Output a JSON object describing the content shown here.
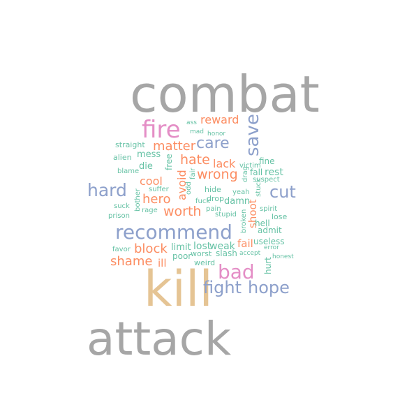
{
  "word_cloud": {
    "colors": {
      "gray": "#a6a6a6",
      "pink": "#e48ec6",
      "blue": "#8da0cb",
      "orange": "#fc8d62",
      "green": "#66c2a5",
      "gold": "#e5c494"
    },
    "words": [
      {
        "text": "combat",
        "color": "gray"
      },
      {
        "text": "kill",
        "color": "gold"
      },
      {
        "text": "attack",
        "color": "gray"
      },
      {
        "text": "fire",
        "color": "pink"
      },
      {
        "text": "save",
        "color": "blue"
      },
      {
        "text": "recommend",
        "color": "blue"
      },
      {
        "text": "bad",
        "color": "pink"
      },
      {
        "text": "hope",
        "color": "blue"
      },
      {
        "text": "fight",
        "color": "blue"
      },
      {
        "text": "hard",
        "color": "blue"
      },
      {
        "text": "cut",
        "color": "blue"
      },
      {
        "text": "care",
        "color": "blue"
      },
      {
        "text": "matter",
        "color": "orange"
      },
      {
        "text": "worth",
        "color": "orange"
      },
      {
        "text": "wrong",
        "color": "orange"
      },
      {
        "text": "hate",
        "color": "orange"
      },
      {
        "text": "hero",
        "color": "orange"
      },
      {
        "text": "block",
        "color": "orange"
      },
      {
        "text": "shame",
        "color": "orange"
      },
      {
        "text": "reward",
        "color": "orange"
      },
      {
        "text": "cool",
        "color": "orange"
      },
      {
        "text": "lack",
        "color": "orange"
      },
      {
        "text": "avoid",
        "color": "orange"
      },
      {
        "text": "shoot",
        "color": "orange"
      },
      {
        "text": "fail",
        "color": "orange"
      },
      {
        "text": "ill",
        "color": "orange"
      },
      {
        "text": "rest",
        "color": "green"
      },
      {
        "text": "fall",
        "color": "green"
      },
      {
        "text": "fine",
        "color": "green"
      },
      {
        "text": "hell",
        "color": "green"
      },
      {
        "text": "weak",
        "color": "green"
      },
      {
        "text": "lost",
        "color": "green"
      },
      {
        "text": "limit",
        "color": "green"
      },
      {
        "text": "useless",
        "color": "green"
      },
      {
        "text": "damn",
        "color": "green"
      },
      {
        "text": "hurt",
        "color": "green"
      },
      {
        "text": "die",
        "color": "green"
      },
      {
        "text": "mess",
        "color": "green"
      },
      {
        "text": "free",
        "color": "green"
      },
      {
        "text": "poor",
        "color": "green"
      },
      {
        "text": "admit",
        "color": "green"
      },
      {
        "text": "slash",
        "color": "green"
      },
      {
        "text": "worst",
        "color": "green"
      },
      {
        "text": "weird",
        "color": "green"
      },
      {
        "text": "lose",
        "color": "green"
      },
      {
        "text": "straight",
        "color": "green"
      },
      {
        "text": "alien",
        "color": "green"
      },
      {
        "text": "suffer",
        "color": "green"
      },
      {
        "text": "hide",
        "color": "green"
      },
      {
        "text": "drop",
        "color": "green"
      },
      {
        "text": "pain",
        "color": "green"
      },
      {
        "text": "victim",
        "color": "green"
      },
      {
        "text": "drag",
        "color": "green"
      },
      {
        "text": "broken",
        "color": "green"
      },
      {
        "text": "spirit",
        "color": "green"
      },
      {
        "text": "stuck",
        "color": "green"
      },
      {
        "text": "suspect",
        "color": "green"
      },
      {
        "text": "yeah",
        "color": "green"
      },
      {
        "text": "fair",
        "color": "green"
      },
      {
        "text": "stupid",
        "color": "green"
      },
      {
        "text": "fuck",
        "color": "green"
      },
      {
        "text": "odd",
        "color": "green"
      },
      {
        "text": "bother",
        "color": "green"
      },
      {
        "text": "rage",
        "color": "green"
      },
      {
        "text": "suck",
        "color": "green"
      },
      {
        "text": "prison",
        "color": "green"
      },
      {
        "text": "blame",
        "color": "green"
      },
      {
        "text": "favor",
        "color": "green"
      },
      {
        "text": "accept",
        "color": "green"
      },
      {
        "text": "error",
        "color": "green"
      },
      {
        "text": "honest",
        "color": "green"
      },
      {
        "text": "ass",
        "color": "green"
      },
      {
        "text": "mad",
        "color": "green"
      },
      {
        "text": "honor",
        "color": "green"
      }
    ]
  }
}
